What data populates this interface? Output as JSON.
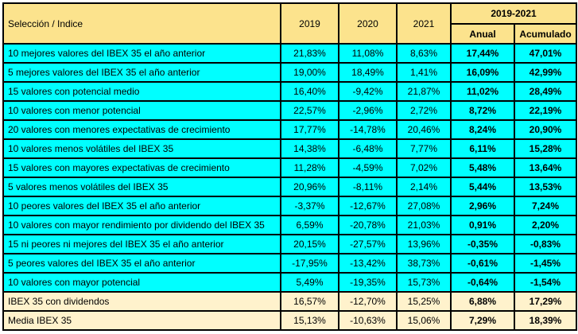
{
  "colors": {
    "header_background": "#FCE38D",
    "selection_row_background": "#00FFFF",
    "index_row_background": "#FFF2CC",
    "border": "#000000",
    "text": "#000000"
  },
  "table": {
    "header": {
      "label_col": "Selección / Indice",
      "years": [
        "2019",
        "2020",
        "2021"
      ],
      "group": "2019-2021",
      "group_cols": [
        "Anual",
        "Acumulado"
      ]
    }
  },
  "chart_data": {
    "type": "table",
    "title": "",
    "columns": [
      "Selección / Indice",
      "2019",
      "2020",
      "2021",
      "2019-2021 Anual",
      "2019-2021 Acumulado"
    ],
    "rows": [
      {
        "group": "selection",
        "label": "10 mejores valores del IBEX 35 el año anterior",
        "values": [
          "21,83%",
          "11,08%",
          "8,63%",
          "17,44%",
          "47,01%"
        ]
      },
      {
        "group": "selection",
        "label": "5 mejores valores del IBEX 35 el año anterior",
        "values": [
          "19,00%",
          "18,49%",
          "1,41%",
          "16,09%",
          "42,99%"
        ]
      },
      {
        "group": "selection",
        "label": "15 valores con potencial medio",
        "values": [
          "16,40%",
          "-9,42%",
          "21,87%",
          "11,02%",
          "28,49%"
        ]
      },
      {
        "group": "selection",
        "label": "10 valores con menor potencial",
        "values": [
          "22,57%",
          "-2,96%",
          "2,72%",
          "8,72%",
          "22,19%"
        ]
      },
      {
        "group": "selection",
        "label": "20 valores con menores expectativas de crecimiento",
        "values": [
          "17,77%",
          "-14,78%",
          "20,46%",
          "8,24%",
          "20,90%"
        ]
      },
      {
        "group": "selection",
        "label": "10 valores menos volátiles del IBEX 35",
        "values": [
          "14,38%",
          "-6,48%",
          "7,77%",
          "6,11%",
          "15,28%"
        ]
      },
      {
        "group": "selection",
        "label": "15 valores con mayores expectativas de crecimiento",
        "values": [
          "11,28%",
          "-4,59%",
          "7,02%",
          "5,48%",
          "13,64%"
        ]
      },
      {
        "group": "selection",
        "label": "5 valores menos volátiles del IBEX 35",
        "values": [
          "20,96%",
          "-8,11%",
          "2,14%",
          "5,44%",
          "13,53%"
        ]
      },
      {
        "group": "selection",
        "label": "10 peores valores del IBEX 35 el año anterior",
        "values": [
          "-3,37%",
          "-12,67%",
          "27,08%",
          "2,96%",
          "7,24%"
        ]
      },
      {
        "group": "selection",
        "label": "10 valores con mayor rendimiento por dividendo del IBEX 35",
        "values": [
          "6,59%",
          "-20,78%",
          "21,03%",
          "0,91%",
          "2,20%"
        ]
      },
      {
        "group": "selection",
        "label": "15 ni peores ni mejores del IBEX 35 el año anterior",
        "values": [
          "20,15%",
          "-27,57%",
          "13,96%",
          "-0,35%",
          "-0,83%"
        ]
      },
      {
        "group": "selection",
        "label": "5 peores valores del IBEX 35 el año anterior",
        "values": [
          "-17,95%",
          "-13,42%",
          "38,73%",
          "-0,61%",
          "-1,45%"
        ]
      },
      {
        "group": "selection",
        "label": "10 valores con mayor potencial",
        "values": [
          "5,49%",
          "-19,35%",
          "15,73%",
          "-0,64%",
          "-1,54%"
        ]
      },
      {
        "group": "index",
        "label": "IBEX 35 con dividendos",
        "values": [
          "16,57%",
          "-12,70%",
          "15,25%",
          "6,88%",
          "17,29%"
        ]
      },
      {
        "group": "index",
        "label": "Media IBEX 35",
        "values": [
          "15,13%",
          "-10,63%",
          "15,06%",
          "7,29%",
          "18,39%"
        ]
      }
    ]
  }
}
